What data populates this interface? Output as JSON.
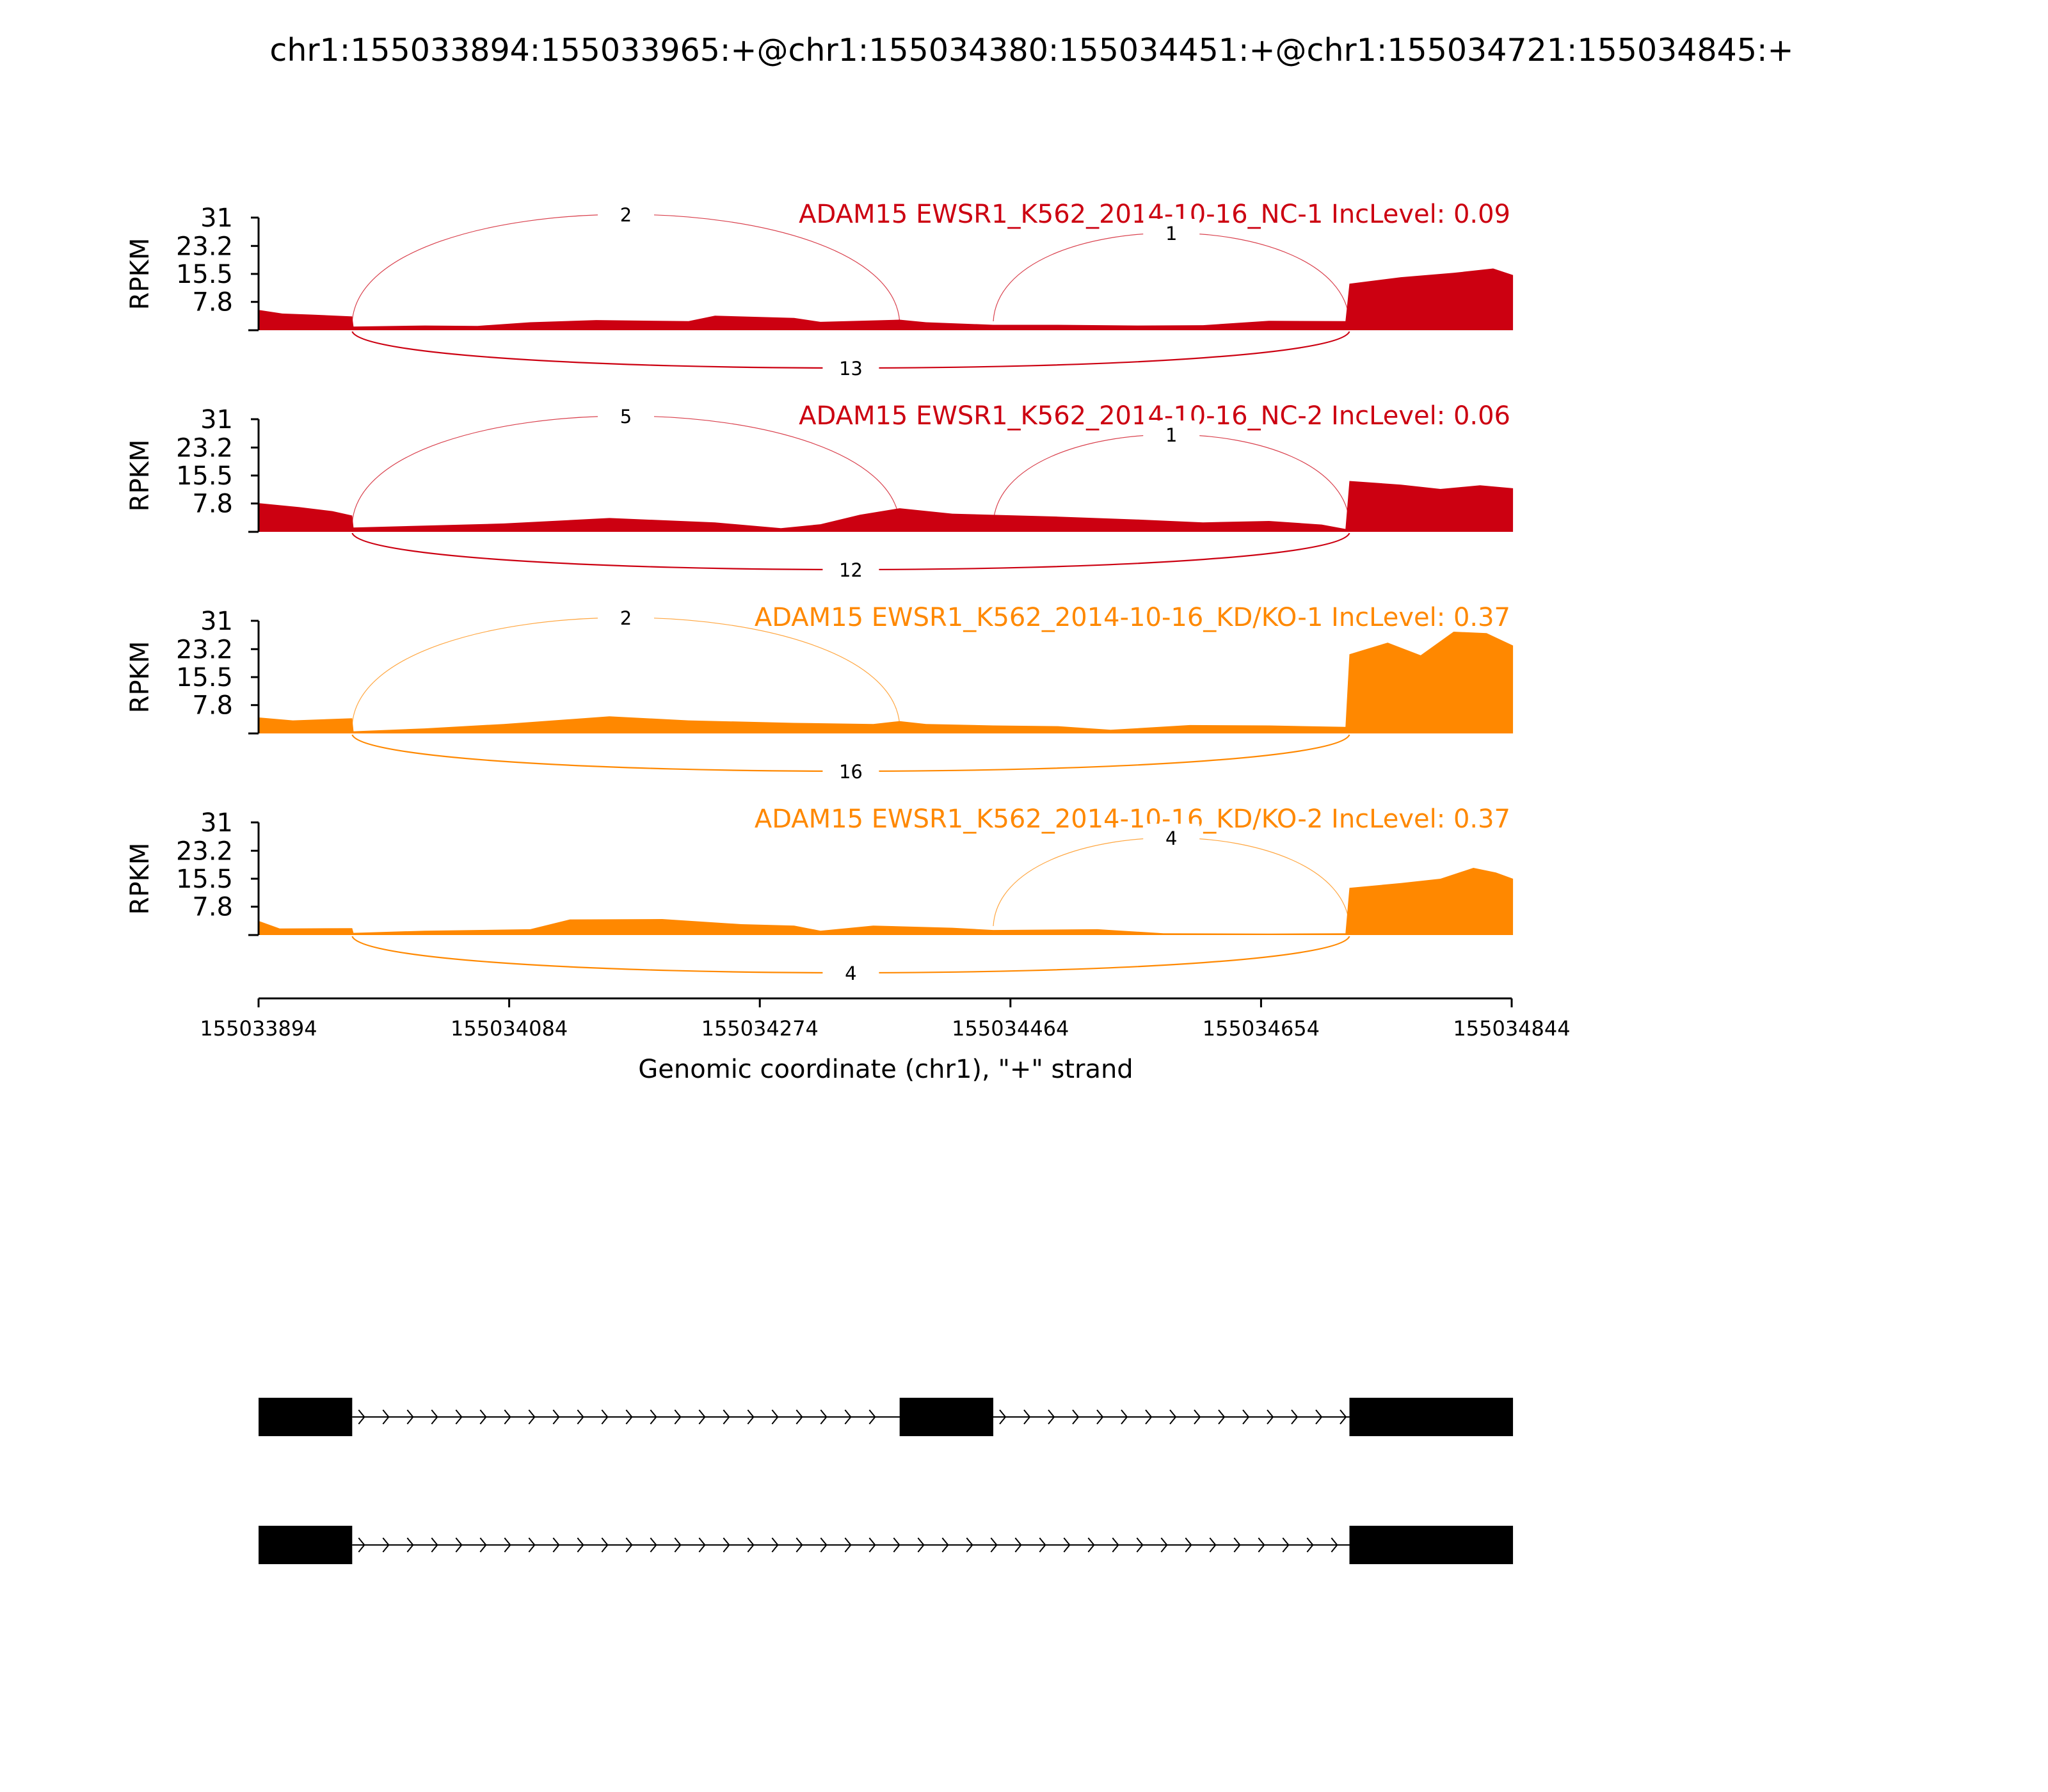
{
  "chart_data": {
    "type": "area",
    "title": "chr1:155033894:155033965:+@chr1:155034380:155034451:+@chr1:155034721:155034845:+",
    "xlabel": "Genomic coordinate (chr1), \"+\" strand",
    "ylabel": "RPKM",
    "xlim": [
      155033894,
      155034844
    ],
    "ylim": [
      0,
      31
    ],
    "x_ticks": [
      "155033894",
      "155034084",
      "155034274",
      "155034464",
      "155034654",
      "155034844"
    ],
    "y_ticks": [
      "31",
      "23.2",
      "15.5",
      "7.8"
    ],
    "exons": [
      [
        155033894,
        155033965
      ],
      [
        155034380,
        155034451
      ],
      [
        155034721,
        155034845
      ]
    ],
    "series": [
      {
        "name": "ADAM15 EWSR1_K562_2014-10-16_NC-1 IncLevel: 0.09",
        "color": "#cc0011",
        "profile": [
          [
            155033894,
            5.6
          ],
          [
            155033912,
            4.6
          ],
          [
            155033935,
            4.3
          ],
          [
            155033965,
            3.8
          ],
          [
            155033966,
            1.0
          ],
          [
            155034020,
            1.3
          ],
          [
            155034060,
            1.2
          ],
          [
            155034100,
            2.2
          ],
          [
            155034150,
            2.8
          ],
          [
            155034220,
            2.5
          ],
          [
            155034240,
            4.0
          ],
          [
            155034300,
            3.4
          ],
          [
            155034320,
            2.3
          ],
          [
            155034380,
            2.9
          ],
          [
            155034400,
            2.2
          ],
          [
            155034451,
            1.5
          ],
          [
            155034500,
            1.5
          ],
          [
            155034560,
            1.3
          ],
          [
            155034610,
            1.4
          ],
          [
            155034660,
            2.6
          ],
          [
            155034718,
            2.5
          ],
          [
            155034721,
            12.8
          ],
          [
            155034760,
            14.6
          ],
          [
            155034800,
            15.8
          ],
          [
            155034830,
            17.0
          ],
          [
            155034845,
            15.2
          ]
        ],
        "junctions": [
          {
            "label": "2",
            "from": 155033965,
            "to": 155034380,
            "side": "above"
          },
          {
            "label": "1",
            "from": 155034451,
            "to": 155034721,
            "side": "above"
          },
          {
            "label": "13",
            "from": 155033965,
            "to": 155034721,
            "side": "below"
          }
        ]
      },
      {
        "name": "ADAM15 EWSR1_K562_2014-10-16_NC-2 IncLevel: 0.06",
        "color": "#cc0011",
        "profile": [
          [
            155033894,
            7.9
          ],
          [
            155033925,
            6.8
          ],
          [
            155033950,
            5.7
          ],
          [
            155033965,
            4.5
          ],
          [
            155033966,
            1.2
          ],
          [
            155034020,
            1.7
          ],
          [
            155034080,
            2.3
          ],
          [
            155034160,
            3.8
          ],
          [
            155034240,
            2.6
          ],
          [
            155034290,
            1.0
          ],
          [
            155034320,
            2.1
          ],
          [
            155034350,
            4.7
          ],
          [
            155034380,
            6.5
          ],
          [
            155034420,
            5.0
          ],
          [
            155034500,
            4.2
          ],
          [
            155034560,
            3.4
          ],
          [
            155034610,
            2.6
          ],
          [
            155034660,
            3.0
          ],
          [
            155034700,
            2.0
          ],
          [
            155034718,
            0.8
          ],
          [
            155034721,
            14.0
          ],
          [
            155034760,
            13.0
          ],
          [
            155034790,
            11.8
          ],
          [
            155034820,
            12.8
          ],
          [
            155034845,
            12.0
          ]
        ],
        "junctions": [
          {
            "label": "5",
            "from": 155033965,
            "to": 155034380,
            "side": "above"
          },
          {
            "label": "1",
            "from": 155034451,
            "to": 155034721,
            "side": "above"
          },
          {
            "label": "12",
            "from": 155033965,
            "to": 155034721,
            "side": "below"
          }
        ]
      },
      {
        "name": "ADAM15 EWSR1_K562_2014-10-16_KD/KO-1 IncLevel: 0.37",
        "color": "#ff8800",
        "profile": [
          [
            155033894,
            4.4
          ],
          [
            155033920,
            3.6
          ],
          [
            155033965,
            4.2
          ],
          [
            155033966,
            0.6
          ],
          [
            155034020,
            1.4
          ],
          [
            155034080,
            2.6
          ],
          [
            155034160,
            4.7
          ],
          [
            155034220,
            3.6
          ],
          [
            155034300,
            2.9
          ],
          [
            155034360,
            2.6
          ],
          [
            155034380,
            3.4
          ],
          [
            155034400,
            2.6
          ],
          [
            155034451,
            2.2
          ],
          [
            155034500,
            2.0
          ],
          [
            155034540,
            1.0
          ],
          [
            155034600,
            2.3
          ],
          [
            155034660,
            2.2
          ],
          [
            155034718,
            1.8
          ],
          [
            155034721,
            21.8
          ],
          [
            155034750,
            25.0
          ],
          [
            155034775,
            21.5
          ],
          [
            155034800,
            28.0
          ],
          [
            155034825,
            27.6
          ],
          [
            155034845,
            24.2
          ]
        ],
        "junctions": [
          {
            "label": "2",
            "from": 155033965,
            "to": 155034380,
            "side": "above"
          },
          {
            "label": "16",
            "from": 155033965,
            "to": 155034721,
            "side": "below"
          }
        ]
      },
      {
        "name": "ADAM15 EWSR1_K562_2014-10-16_KD/KO-2 IncLevel: 0.37",
        "color": "#ff8800",
        "profile": [
          [
            155033894,
            3.9
          ],
          [
            155033910,
            1.8
          ],
          [
            155033965,
            1.9
          ],
          [
            155033966,
            0.6
          ],
          [
            155034020,
            1.2
          ],
          [
            155034100,
            1.6
          ],
          [
            155034130,
            4.3
          ],
          [
            155034200,
            4.4
          ],
          [
            155034260,
            3.0
          ],
          [
            155034300,
            2.6
          ],
          [
            155034320,
            1.2
          ],
          [
            155034360,
            2.6
          ],
          [
            155034420,
            2.0
          ],
          [
            155034451,
            1.4
          ],
          [
            155034530,
            1.6
          ],
          [
            155034580,
            0.5
          ],
          [
            155034660,
            0.4
          ],
          [
            155034718,
            0.5
          ],
          [
            155034721,
            13.0
          ],
          [
            155034760,
            14.3
          ],
          [
            155034790,
            15.5
          ],
          [
            155034815,
            18.5
          ],
          [
            155034832,
            17.2
          ],
          [
            155034845,
            15.5
          ]
        ],
        "junctions": [
          {
            "label": "4",
            "from": 155034451,
            "to": 155034721,
            "side": "above"
          },
          {
            "label": "4",
            "from": 155033965,
            "to": 155034721,
            "side": "below"
          }
        ]
      }
    ],
    "isoforms": [
      {
        "exons": [
          [
            155033894,
            155033965
          ],
          [
            155034380,
            155034451
          ],
          [
            155034721,
            155034845
          ]
        ]
      },
      {
        "exons": [
          [
            155033894,
            155033965
          ],
          [
            155034721,
            155034845
          ]
        ]
      }
    ]
  }
}
